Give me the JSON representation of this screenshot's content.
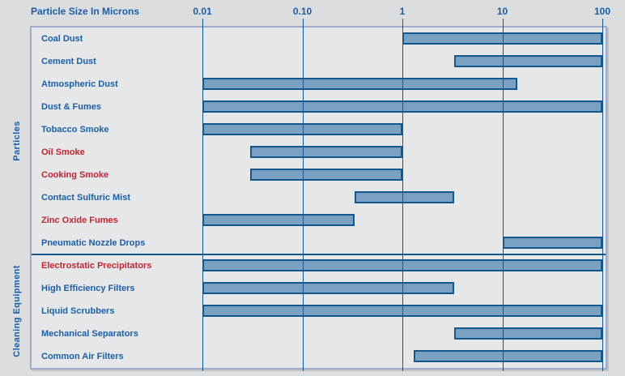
{
  "title": "Particle Size In Microns",
  "colors": {
    "page_background": "#dbdddf",
    "plot_background": "#e6e7e9",
    "bar_fill": "#7aa0c4",
    "bar_border": "#14568e",
    "gridline": "#14568e",
    "frame_border": "#9fabc7",
    "text_blue": "#1a5ea8",
    "text_red": "#c22630"
  },
  "sections": [
    {
      "label": "Particles",
      "row_start": 0,
      "row_end": 9
    },
    {
      "label": "Cleaning Equipment",
      "row_start": 10,
      "row_end": 14
    }
  ],
  "chart_data": {
    "type": "bar",
    "subtype": "horizontal-range-bars",
    "title": "Particle Size In Microns",
    "xlabel": "Particle Size In Microns",
    "x_axis": {
      "scale": "log",
      "range": [
        0.01,
        100
      ],
      "tick_labels": [
        "0.01",
        "0.10",
        "1",
        "10",
        "100"
      ],
      "tick_values": [
        0.01,
        0.1,
        1,
        10,
        100
      ],
      "position": "top",
      "grid": true
    },
    "rows": [
      {
        "label": "Coal Dust",
        "min": 1,
        "max": 100,
        "label_color": "blue",
        "section": "Particles"
      },
      {
        "label": "Cement Dust",
        "min": 3.3,
        "max": 100,
        "label_color": "blue",
        "section": "Particles"
      },
      {
        "label": "Atmospheric Dust",
        "min": 0.01,
        "max": 14,
        "label_color": "blue",
        "section": "Particles"
      },
      {
        "label": "Dust & Fumes",
        "min": 0.01,
        "max": 100,
        "label_color": "blue",
        "section": "Particles"
      },
      {
        "label": "Tobacco Smoke",
        "min": 0.01,
        "max": 1,
        "label_color": "blue",
        "section": "Particles"
      },
      {
        "label": "Oil Smoke",
        "min": 0.03,
        "max": 1,
        "label_color": "red",
        "section": "Particles"
      },
      {
        "label": "Cooking Smoke",
        "min": 0.03,
        "max": 1,
        "label_color": "red",
        "section": "Particles"
      },
      {
        "label": "Contact Sulfuric Mist",
        "min": 0.33,
        "max": 3.3,
        "label_color": "blue",
        "section": "Particles"
      },
      {
        "label": "Zinc Oxide Fumes",
        "min": 0.01,
        "max": 0.33,
        "label_color": "red",
        "section": "Particles"
      },
      {
        "label": "Pneumatic Nozzle Drops",
        "min": 10,
        "max": 100,
        "label_color": "blue",
        "section": "Particles"
      },
      {
        "label": "Electrostatic Precipitators",
        "min": 0.01,
        "max": 100,
        "label_color": "red",
        "section": "Cleaning Equipment"
      },
      {
        "label": "High Efficiency Filters",
        "min": 0.01,
        "max": 3.3,
        "label_color": "blue",
        "section": "Cleaning Equipment"
      },
      {
        "label": "Liquid Scrubbers",
        "min": 0.01,
        "max": 100,
        "label_color": "blue",
        "section": "Cleaning Equipment"
      },
      {
        "label": "Mechanical Separators",
        "min": 3.3,
        "max": 100,
        "label_color": "blue",
        "section": "Cleaning Equipment"
      },
      {
        "label": "Common Air Filters",
        "min": 1.3,
        "max": 100,
        "label_color": "blue",
        "section": "Cleaning Equipment"
      }
    ]
  }
}
